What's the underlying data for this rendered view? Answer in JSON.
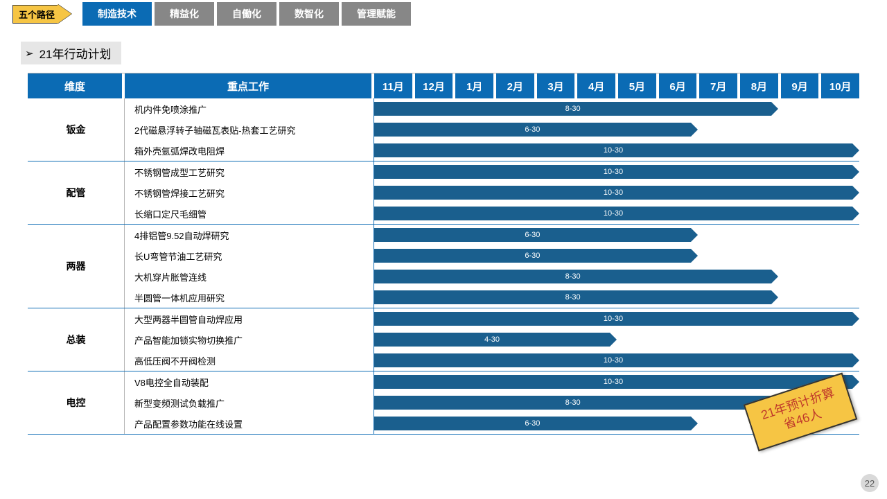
{
  "top": {
    "arrow_label": "五个路径",
    "tabs": [
      {
        "label": "制造技术",
        "active": true
      },
      {
        "label": "精益化",
        "active": false
      },
      {
        "label": "自働化",
        "active": false
      },
      {
        "label": "数智化",
        "active": false
      },
      {
        "label": "管理赋能",
        "active": false
      }
    ]
  },
  "section_title": "21年行动计划",
  "header": {
    "dimension": "维度",
    "key_work": "重点工作",
    "months": [
      "11月",
      "12月",
      "1月",
      "2月",
      "3月",
      "4月",
      "5月",
      "6月",
      "7月",
      "8月",
      "9月",
      "10月"
    ]
  },
  "bar_color": "#1a5f8e",
  "groups": [
    {
      "name": "钣金",
      "rows": [
        {
          "work": "机内件免喷涂推广",
          "label": "8-30",
          "span": 10
        },
        {
          "work": "2代磁悬浮转子轴磁瓦表贴-热套工艺研究",
          "label": "6-30",
          "span": 8
        },
        {
          "work": "箱外壳氩弧焊改电阻焊",
          "label": "10-30",
          "span": 12
        }
      ]
    },
    {
      "name": "配管",
      "rows": [
        {
          "work": "不锈钢管成型工艺研究",
          "label": "10-30",
          "span": 12
        },
        {
          "work": "不锈钢管焊接工艺研究",
          "label": "10-30",
          "span": 12
        },
        {
          "work": "长缩口定尺毛细管",
          "label": "10-30",
          "span": 12
        }
      ]
    },
    {
      "name": "两器",
      "rows": [
        {
          "work": "4排铝管9.52自动焊研究",
          "label": "6-30",
          "span": 8
        },
        {
          "work": "长U弯管节油工艺研究",
          "label": "6-30",
          "span": 8
        },
        {
          "work": "大机穿片胀管连线",
          "label": "8-30",
          "span": 10
        },
        {
          "work": "半圆管一体机应用研究",
          "label": "8-30",
          "span": 10
        }
      ]
    },
    {
      "name": "总装",
      "rows": [
        {
          "work": "大型两器半圆管自动焊应用",
          "label": "10-30",
          "span": 12
        },
        {
          "work": "产品智能加锁实物切换推广",
          "label": "4-30",
          "span": 6
        },
        {
          "work": "高低压阀不开阀检测",
          "label": "10-30",
          "span": 12
        }
      ]
    },
    {
      "name": "电控",
      "rows": [
        {
          "work": "V8电控全自动装配",
          "label": "10-30",
          "span": 12
        },
        {
          "work": "新型变频测试负载推广",
          "label": "8-30",
          "span": 10
        },
        {
          "work": "产品配置参数功能在线设置",
          "label": "6-30",
          "span": 8
        }
      ]
    }
  ],
  "sticker": "21年预计折算\n省46人",
  "page_number": "22",
  "total_months": 12
}
